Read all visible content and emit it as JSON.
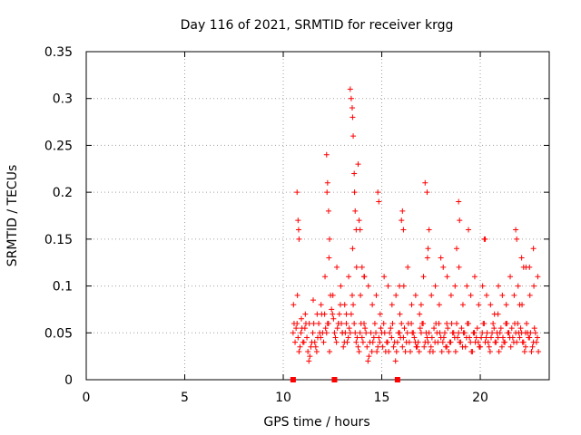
{
  "chart_data": {
    "type": "scatter",
    "title": "Day 116 of 2021, SRMTID for receiver krgg",
    "xlabel": "GPS time / hours",
    "ylabel": "SRMTID / TECUs",
    "xlim": [
      0,
      23.5
    ],
    "ylim": [
      0,
      0.35
    ],
    "xticks": [
      0,
      5,
      10,
      15,
      20
    ],
    "xtick_labels": [
      "0",
      "5",
      "10",
      "15",
      "20"
    ],
    "yticks": [
      0,
      0.05,
      0.1,
      0.15,
      0.2,
      0.25,
      0.3,
      0.35
    ],
    "ytick_labels": [
      "0",
      "0.05",
      "0.1",
      "0.15",
      "0.2",
      "0.25",
      "0.3",
      "0.35"
    ],
    "grid": true,
    "marker": "+",
    "color": "#ff0000",
    "zero_markers_x": [
      10.5,
      12.6,
      15.8
    ],
    "series": [
      {
        "name": "SRMTID",
        "x": [
          10.5,
          10.6,
          10.7,
          10.8,
          10.9,
          11.0,
          11.1,
          11.2,
          11.3,
          11.4,
          11.5,
          11.6,
          11.7,
          11.8,
          11.9,
          12.0,
          12.1,
          12.2,
          12.3,
          12.4,
          12.5,
          12.6,
          12.7,
          12.8,
          12.9,
          13.0,
          13.1,
          13.2,
          13.3,
          13.4,
          13.5,
          13.6,
          13.7,
          13.8,
          13.9,
          14.0,
          14.1,
          14.2,
          14.3,
          14.4,
          14.5,
          14.6,
          14.7,
          14.8,
          14.9,
          15.0,
          15.1,
          15.2,
          15.3,
          15.4,
          15.5,
          15.6,
          15.7,
          15.8,
          15.9,
          16.0,
          16.1,
          16.2,
          16.3,
          16.4,
          16.5,
          16.6,
          16.7,
          16.8,
          16.9,
          17.0,
          17.1,
          17.2,
          17.3,
          17.4,
          17.5,
          17.6,
          17.7,
          17.8,
          17.9,
          18.0,
          18.1,
          18.2,
          18.3,
          18.4,
          18.5,
          18.6,
          18.7,
          18.8,
          18.9,
          19.0,
          19.1,
          19.2,
          19.3,
          19.4,
          19.5,
          19.6,
          19.7,
          19.8,
          19.9,
          20.0,
          20.1,
          20.2,
          20.3,
          20.4,
          20.5,
          20.6,
          20.7,
          20.8,
          20.9,
          21.0,
          21.1,
          21.2,
          21.3,
          21.4,
          21.5,
          21.6,
          21.7,
          21.8,
          21.9,
          22.0,
          22.1,
          22.2,
          22.3,
          22.4,
          22.5,
          22.6,
          22.7,
          22.8,
          22.9,
          10.55,
          10.65,
          10.75,
          10.85,
          10.95,
          11.05,
          11.15,
          11.25,
          11.35,
          11.45,
          11.55,
          11.65,
          11.75,
          11.85,
          11.95,
          12.05,
          12.15,
          12.25,
          12.35,
          12.45,
          12.55,
          12.65,
          12.75,
          12.85,
          12.95,
          13.05,
          13.15,
          13.25,
          13.35,
          13.45,
          13.55,
          13.65,
          13.75,
          13.85,
          13.95,
          14.05,
          14.15,
          14.25,
          14.35,
          14.45,
          14.55,
          14.65,
          14.75,
          14.85,
          14.95,
          15.05,
          15.15,
          15.25,
          15.35,
          15.45,
          15.55,
          15.65,
          15.75,
          15.85,
          15.95,
          16.05,
          16.15,
          16.25,
          16.35,
          16.45,
          16.55,
          16.65,
          16.75,
          16.85,
          16.95,
          17.05,
          17.15,
          17.25,
          17.35,
          17.45,
          17.55,
          17.65,
          17.75,
          17.85,
          17.95,
          18.05,
          18.15,
          18.25,
          18.35,
          18.45,
          18.55,
          18.65,
          18.75,
          18.85,
          18.95,
          19.05,
          19.15,
          19.25,
          19.35,
          19.45,
          19.55,
          19.65,
          19.75,
          19.85,
          19.95,
          20.05,
          20.15,
          20.25,
          20.35,
          20.45,
          20.55,
          20.65,
          20.75,
          20.85,
          20.95,
          21.05,
          21.15,
          21.25,
          21.35,
          21.45,
          21.55,
          21.65,
          21.75,
          21.85,
          21.95,
          22.05,
          22.15,
          22.25,
          22.35,
          22.45,
          22.55,
          22.65,
          22.75,
          22.85,
          22.95,
          10.52,
          10.72,
          10.92,
          11.12,
          11.32,
          11.52,
          11.72,
          11.92,
          12.12,
          12.32,
          12.52,
          12.72,
          12.92,
          13.12,
          13.32,
          13.52,
          13.72,
          13.92,
          14.12,
          14.32,
          14.52,
          14.72,
          14.92,
          15.12,
          15.32,
          15.52,
          15.72,
          15.92,
          16.12,
          16.32,
          16.52,
          16.72,
          16.92,
          17.12,
          17.32,
          17.52,
          17.72,
          17.92,
          18.12,
          18.32,
          18.52,
          18.72,
          18.92,
          19.12,
          19.32,
          19.52,
          19.72,
          19.92,
          20.12,
          20.32,
          20.52,
          20.72,
          20.92,
          21.12,
          21.32,
          21.52,
          21.72,
          21.92,
          22.12,
          22.32,
          22.52,
          22.72,
          22.92,
          10.7,
          10.75,
          10.78,
          10.8,
          12.2,
          12.22,
          12.25,
          12.3,
          12.35,
          13.4,
          13.45,
          13.5,
          13.52,
          13.55,
          13.6,
          13.62,
          13.65,
          13.7,
          13.8,
          13.85,
          13.9,
          14.0,
          14.1,
          14.8,
          14.85,
          16.0,
          16.05,
          16.1,
          17.2,
          17.3,
          17.35,
          17.4,
          18.0,
          18.8,
          18.9,
          18.95,
          19.4,
          20.2,
          20.25,
          21.8,
          21.85,
          22.1,
          22.2,
          22.5,
          22.7,
          12.8,
          13.0,
          13.2,
          15.9,
          17.0,
          18.3,
          19.7,
          20.9,
          21.3,
          22.0,
          22.3
        ],
        "y": [
          0.05,
          0.04,
          0.06,
          0.03,
          0.05,
          0.04,
          0.055,
          0.045,
          0.02,
          0.035,
          0.05,
          0.04,
          0.03,
          0.06,
          0.045,
          0.05,
          0.07,
          0.05,
          0.06,
          0.09,
          0.07,
          0.05,
          0.04,
          0.06,
          0.08,
          0.05,
          0.04,
          0.06,
          0.045,
          0.05,
          0.09,
          0.06,
          0.04,
          0.035,
          0.05,
          0.045,
          0.06,
          0.05,
          0.02,
          0.04,
          0.03,
          0.045,
          0.05,
          0.035,
          0.04,
          0.05,
          0.06,
          0.03,
          0.04,
          0.05,
          0.045,
          0.035,
          0.02,
          0.04,
          0.05,
          0.06,
          0.045,
          0.03,
          0.05,
          0.04,
          0.06,
          0.05,
          0.04,
          0.035,
          0.03,
          0.05,
          0.06,
          0.04,
          0.045,
          0.05,
          0.035,
          0.03,
          0.04,
          0.05,
          0.06,
          0.045,
          0.04,
          0.05,
          0.035,
          0.03,
          0.04,
          0.05,
          0.045,
          0.06,
          0.05,
          0.04,
          0.035,
          0.05,
          0.045,
          0.06,
          0.04,
          0.03,
          0.05,
          0.045,
          0.04,
          0.035,
          0.05,
          0.06,
          0.045,
          0.04,
          0.03,
          0.05,
          0.055,
          0.04,
          0.045,
          0.05,
          0.035,
          0.04,
          0.06,
          0.05,
          0.045,
          0.055,
          0.04,
          0.05,
          0.06,
          0.045,
          0.05,
          0.04,
          0.035,
          0.05,
          0.045,
          0.03,
          0.04,
          0.05,
          0.045,
          0.06,
          0.055,
          0.045,
          0.035,
          0.055,
          0.04,
          0.06,
          0.03,
          0.025,
          0.04,
          0.06,
          0.035,
          0.045,
          0.05,
          0.07,
          0.04,
          0.055,
          0.06,
          0.03,
          0.075,
          0.065,
          0.045,
          0.055,
          0.07,
          0.06,
          0.035,
          0.05,
          0.04,
          0.055,
          0.07,
          0.08,
          0.05,
          0.045,
          0.03,
          0.06,
          0.04,
          0.055,
          0.035,
          0.025,
          0.05,
          0.04,
          0.06,
          0.03,
          0.045,
          0.055,
          0.035,
          0.05,
          0.04,
          0.03,
          0.055,
          0.06,
          0.04,
          0.03,
          0.05,
          0.045,
          0.035,
          0.055,
          0.04,
          0.06,
          0.03,
          0.05,
          0.045,
          0.035,
          0.04,
          0.055,
          0.06,
          0.035,
          0.05,
          0.04,
          0.03,
          0.045,
          0.055,
          0.06,
          0.04,
          0.05,
          0.03,
          0.045,
          0.035,
          0.055,
          0.04,
          0.06,
          0.05,
          0.03,
          0.045,
          0.04,
          0.055,
          0.05,
          0.035,
          0.06,
          0.045,
          0.03,
          0.05,
          0.04,
          0.055,
          0.035,
          0.045,
          0.06,
          0.04,
          0.05,
          0.035,
          0.045,
          0.06,
          0.04,
          0.05,
          0.03,
          0.055,
          0.045,
          0.04,
          0.06,
          0.05,
          0.035,
          0.045,
          0.06,
          0.04,
          0.05,
          0.055,
          0.04,
          0.03,
          0.06,
          0.045,
          0.05,
          0.035,
          0.055,
          0.04,
          0.03,
          0.08,
          0.09,
          0.065,
          0.07,
          0.06,
          0.085,
          0.07,
          0.08,
          0.11,
          0.13,
          0.09,
          0.12,
          0.1,
          0.08,
          0.11,
          0.14,
          0.12,
          0.09,
          0.11,
          0.1,
          0.08,
          0.09,
          0.07,
          0.11,
          0.1,
          0.08,
          0.09,
          0.07,
          0.1,
          0.12,
          0.08,
          0.09,
          0.07,
          0.11,
          0.13,
          0.09,
          0.1,
          0.08,
          0.12,
          0.11,
          0.09,
          0.1,
          0.12,
          0.08,
          0.1,
          0.09,
          0.11,
          0.08,
          0.1,
          0.09,
          0.08,
          0.07,
          0.1,
          0.09,
          0.08,
          0.11,
          0.09,
          0.1,
          0.08,
          0.12,
          0.09,
          0.1,
          0.11,
          0.2,
          0.17,
          0.16,
          0.15,
          0.24,
          0.2,
          0.21,
          0.18,
          0.15,
          0.31,
          0.3,
          0.29,
          0.28,
          0.26,
          0.22,
          0.2,
          0.18,
          0.16,
          0.23,
          0.17,
          0.16,
          0.12,
          0.11,
          0.2,
          0.19,
          0.17,
          0.18,
          0.16,
          0.21,
          0.2,
          0.14,
          0.16,
          0.13,
          0.14,
          0.19,
          0.17,
          0.16,
          0.15,
          0.15,
          0.16,
          0.15,
          0.13,
          0.12,
          0.12,
          0.14,
          0.06,
          0.05,
          0.07,
          0.1,
          0.08,
          0.06,
          0.05,
          0.07,
          0.06,
          0.08,
          0.05
        ]
      }
    ]
  }
}
